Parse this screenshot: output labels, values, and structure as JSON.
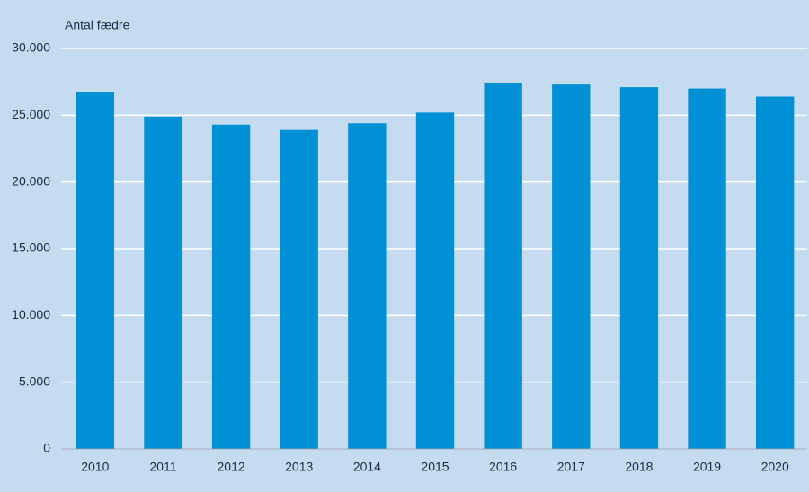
{
  "chart_data": {
    "type": "bar",
    "y_axis_label": "Antal fædre",
    "categories": [
      "2010",
      "2011",
      "2012",
      "2013",
      "2014",
      "2015",
      "2016",
      "2017",
      "2018",
      "2019",
      "2020"
    ],
    "values": [
      26700,
      24900,
      24300,
      23900,
      24400,
      25200,
      27400,
      27300,
      27100,
      27000,
      26400
    ],
    "color": "#0090d5",
    "ylim": [
      0,
      30000
    ],
    "yticks": [
      0,
      {
        "value": 5000,
        "label": "5.000"
      },
      {
        "value": 10000,
        "label": "10.000"
      },
      {
        "value": 15000,
        "label": "15.000"
      },
      {
        "value": 20000,
        "label": "20.000"
      },
      {
        "value": 25000,
        "label": "25.000"
      },
      {
        "value": 30000,
        "label": "30.000"
      }
    ],
    "grid": true
  }
}
